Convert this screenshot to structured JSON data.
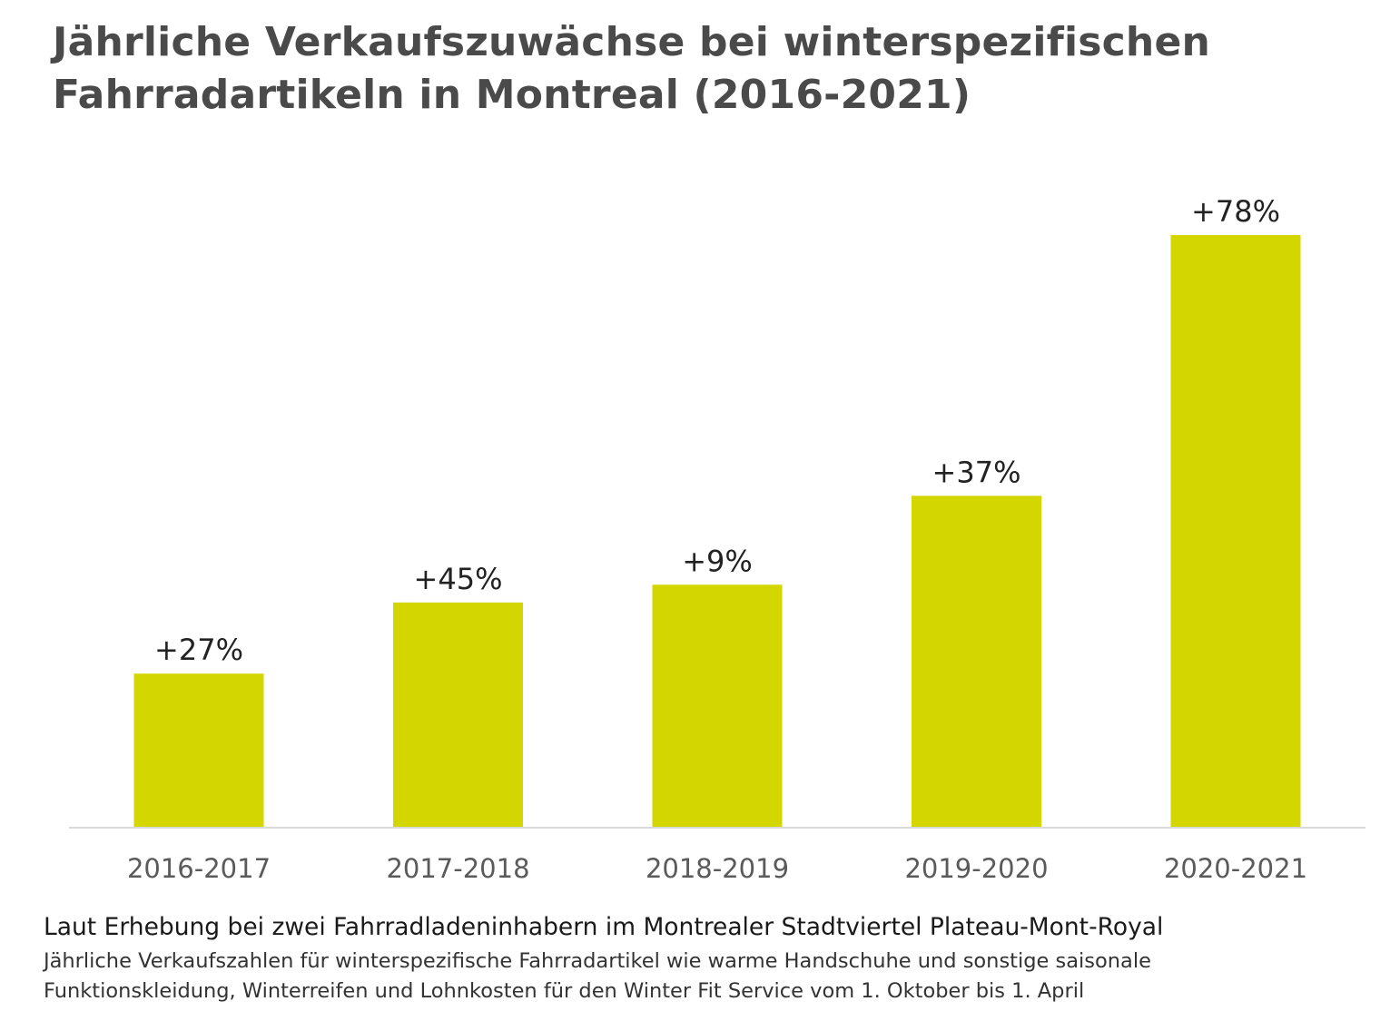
{
  "chart_data": {
    "type": "bar",
    "title_lines": [
      "Jährliche Verkaufszuwächse bei winterspezifischen",
      "Fahrradartikeln in Montreal (2016-2021)"
    ],
    "categories": [
      "2016-2017",
      "2017-2018",
      "2018-2019",
      "2019-2020",
      "2020-2021"
    ],
    "values": [
      27,
      45,
      9,
      37,
      78
    ],
    "value_labels": [
      "+27%",
      "+45%",
      "+9%",
      "+37%",
      "+78%"
    ],
    "display_level": [
      0.26,
      0.38,
      0.41,
      0.56,
      1.0
    ],
    "unit": "%",
    "xlabel": "",
    "ylabel": "",
    "grid": false,
    "legend": "none",
    "bar_color": "#d4d600",
    "baseline_color": "#d9d9d9"
  },
  "footer": {
    "source": "Laut Erhebung bei zwei Fahrradladeninhabern im Montrealer Stadtviertel Plateau-Mont-Royal",
    "note_lines": [
      "Jährliche Verkaufszahlen für winterspezifische Fahrradartikel wie warme Handschuhe und sonstige saisonale",
      "Funktionskleidung, Winterreifen und Lohnkosten für den Winter Fit Service vom 1. Oktober bis 1. April"
    ]
  }
}
